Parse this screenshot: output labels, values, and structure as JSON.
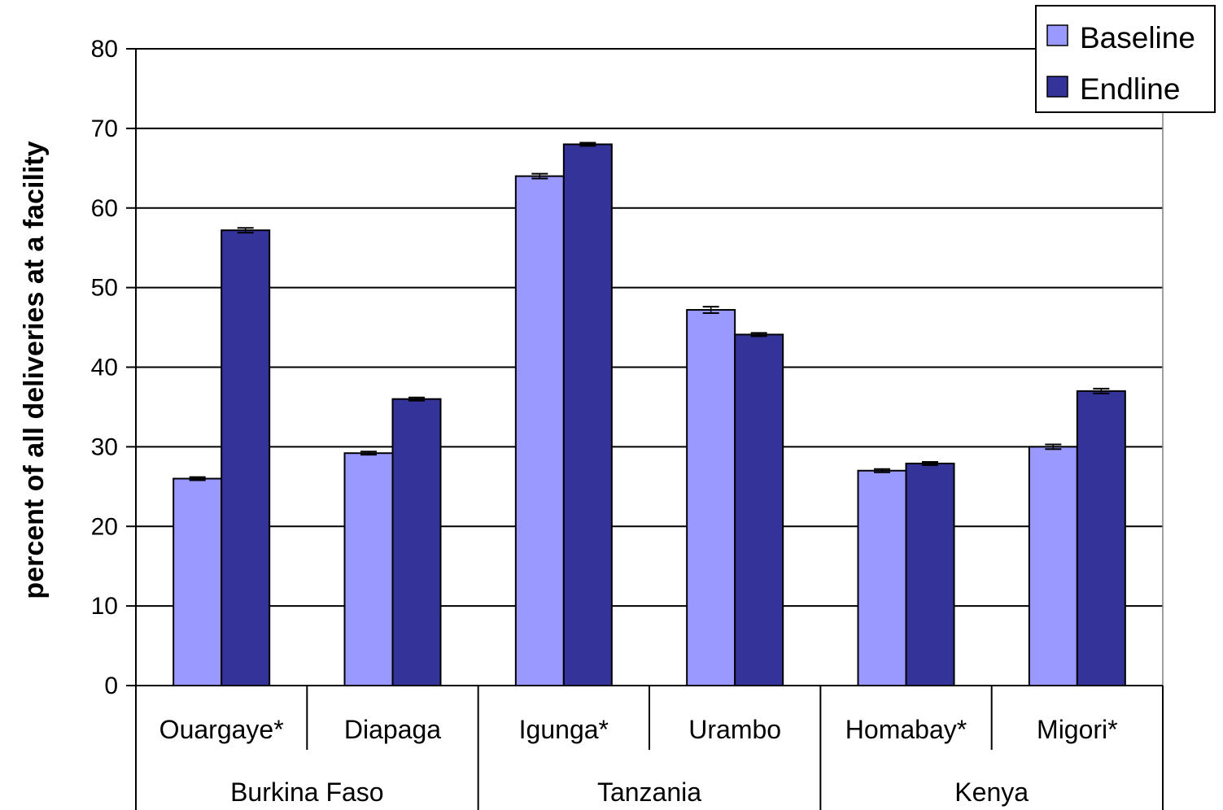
{
  "chart_data": {
    "type": "bar",
    "title": "",
    "xlabel": "",
    "ylabel": "percent of all deliveries at a facility",
    "ylim": [
      0,
      80
    ],
    "yticks": [
      0,
      10,
      20,
      30,
      40,
      50,
      60,
      70,
      80
    ],
    "grid": true,
    "legend_position": "top-right",
    "categories": [
      "Ouargaye*",
      "Diapaga",
      "Igunga*",
      "Urambo",
      "Homabay*",
      "Migori*"
    ],
    "groups": [
      {
        "label": "Burkina Faso",
        "categories": [
          "Ouargaye*",
          "Diapaga"
        ]
      },
      {
        "label": "Tanzania",
        "categories": [
          "Igunga*",
          "Urambo"
        ]
      },
      {
        "label": "Kenya",
        "categories": [
          "Homabay*",
          "Migori*"
        ]
      }
    ],
    "series": [
      {
        "name": "Baseline",
        "color": "#9999ff",
        "values": [
          26,
          29.2,
          64,
          47.2,
          27,
          30
        ],
        "error": [
          0.2,
          0.2,
          0.3,
          0.4,
          0.2,
          0.3
        ]
      },
      {
        "name": "Endline",
        "color": "#333399",
        "values": [
          57.2,
          36,
          68,
          44.1,
          27.9,
          37
        ],
        "error": [
          0.3,
          0.2,
          0.2,
          0.2,
          0.2,
          0.3
        ]
      }
    ]
  }
}
